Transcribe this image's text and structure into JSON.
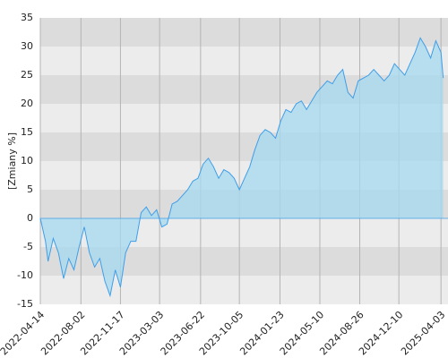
{
  "chart_data": {
    "type": "area",
    "ylabel": "[Zmiany %]",
    "color": "#3f9ee8",
    "fill": "#a6daf0",
    "ylim": [
      -15,
      35
    ],
    "yticks": [
      -15,
      -10,
      -5,
      0,
      5,
      10,
      15,
      20,
      25,
      30,
      35
    ],
    "xlim": [
      "2022-04-14",
      "2025-04-22"
    ],
    "xticks": [
      "2022-04-14",
      "2022-08-02",
      "2022-11-17",
      "2023-03-03",
      "2023-06-22",
      "2023-10-05",
      "2024-01-23",
      "2024-05-10",
      "2024-08-26",
      "2024-12-10",
      "2025-04-03"
    ],
    "grid": true,
    "x": [
      "2022-04-14",
      "2022-04-28",
      "2022-05-05",
      "2022-05-19",
      "2022-06-02",
      "2022-06-16",
      "2022-06-30",
      "2022-07-14",
      "2022-07-28",
      "2022-08-11",
      "2022-08-25",
      "2022-09-08",
      "2022-09-22",
      "2022-10-06",
      "2022-10-20",
      "2022-11-03",
      "2022-11-17",
      "2022-12-01",
      "2022-12-15",
      "2022-12-29",
      "2023-01-12",
      "2023-01-26",
      "2023-02-09",
      "2023-02-23",
      "2023-03-09",
      "2023-03-23",
      "2023-04-06",
      "2023-04-20",
      "2023-05-04",
      "2023-05-18",
      "2023-06-01",
      "2023-06-15",
      "2023-06-29",
      "2023-07-13",
      "2023-07-27",
      "2023-08-10",
      "2023-08-24",
      "2023-09-07",
      "2023-09-21",
      "2023-10-05",
      "2023-10-19",
      "2023-11-02",
      "2023-11-16",
      "2023-11-30",
      "2023-12-14",
      "2023-12-28",
      "2024-01-11",
      "2024-01-25",
      "2024-02-08",
      "2024-02-22",
      "2024-03-07",
      "2024-03-21",
      "2024-04-04",
      "2024-04-18",
      "2024-05-02",
      "2024-05-16",
      "2024-05-30",
      "2024-06-13",
      "2024-06-27",
      "2024-07-11",
      "2024-07-25",
      "2024-08-08",
      "2024-08-22",
      "2024-09-05",
      "2024-09-19",
      "2024-10-03",
      "2024-10-17",
      "2024-10-31",
      "2024-11-14",
      "2024-11-28",
      "2024-12-12",
      "2024-12-26",
      "2025-01-09",
      "2025-01-23",
      "2025-02-06",
      "2025-02-20",
      "2025-03-06",
      "2025-03-20",
      "2025-04-03",
      "2025-04-09"
    ],
    "values": [
      0,
      -4,
      -7.5,
      -3.5,
      -6,
      -10.5,
      -7,
      -9,
      -5,
      -1.5,
      -6,
      -8.5,
      -7,
      -11,
      -13.5,
      -9,
      -12,
      -6,
      -4,
      -4,
      1,
      2,
      0.5,
      1.5,
      -1.5,
      -1,
      2.5,
      3,
      4,
      5,
      6.5,
      7,
      9.5,
      10.5,
      9,
      7,
      8.5,
      8,
      7,
      5,
      7,
      9,
      12,
      14.5,
      15.5,
      15,
      14,
      17,
      19,
      18.5,
      20,
      20.5,
      19,
      20.5,
      22,
      23,
      24,
      23.5,
      25,
      26,
      22,
      21,
      24,
      24.5,
      25,
      26,
      25,
      24,
      25,
      27,
      26,
      25,
      27,
      29,
      31.5,
      30,
      28,
      31,
      29,
      24.5
    ]
  }
}
